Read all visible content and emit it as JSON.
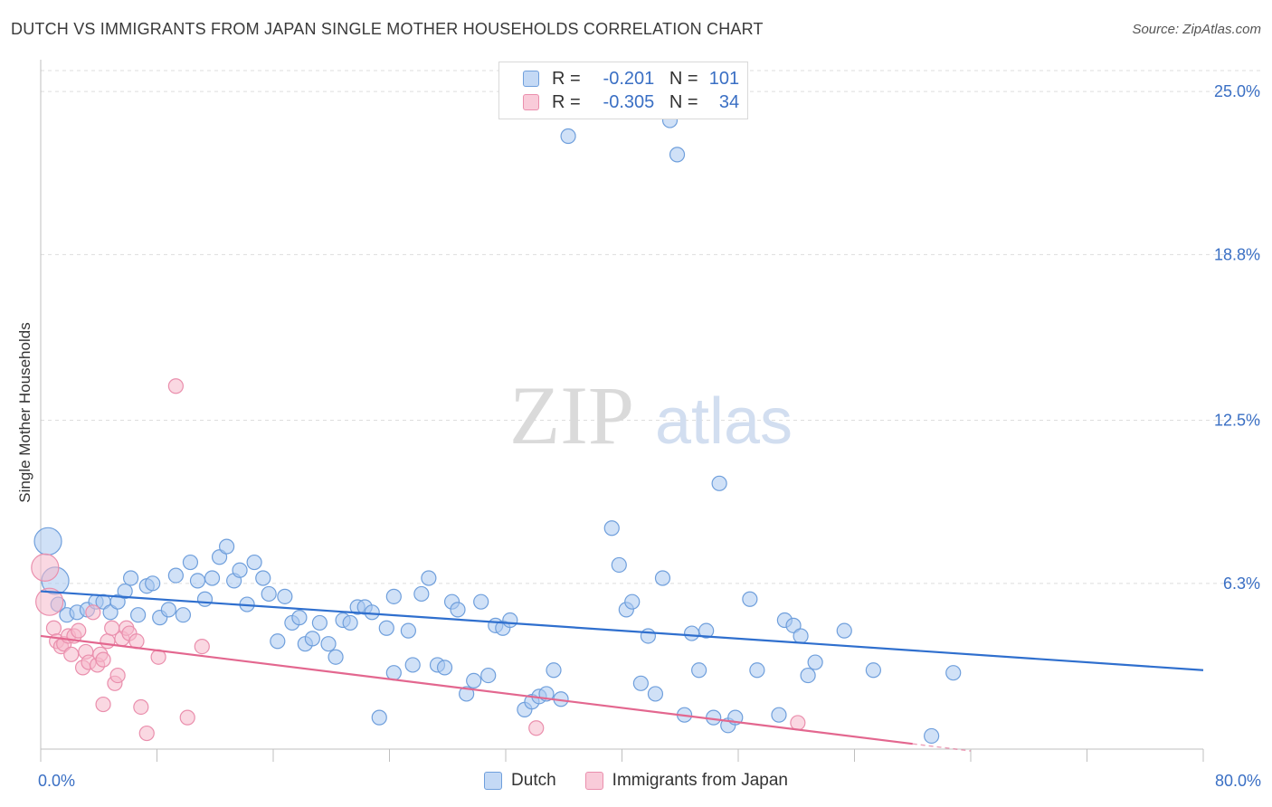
{
  "title": "DUTCH VS IMMIGRANTS FROM JAPAN SINGLE MOTHER HOUSEHOLDS CORRELATION CHART",
  "source": "Source: ZipAtlas.com",
  "watermark": {
    "zip": "ZIP",
    "atlas": "atlas"
  },
  "legend": {
    "row1": {
      "r_label": "R =",
      "r_value": "-0.201",
      "n_label": "N =",
      "n_value": "101"
    },
    "row2": {
      "r_label": "R =",
      "r_value": "-0.305",
      "n_label": "N =",
      "n_value": "34"
    }
  },
  "colors": {
    "dutch_fill": "#a9c8f0",
    "dutch_stroke": "#6f9fdc",
    "dutch_line": "#2f6fce",
    "japan_fill": "#f6b8cb",
    "japan_stroke": "#ea8fad",
    "japan_line": "#e3678f",
    "tick_label": "#3a6fc4",
    "grid": "#dddddd"
  },
  "chart_data": {
    "type": "scatter",
    "xlabel": "",
    "ylabel": "Single Mother Households",
    "x_tick_labels": [
      "0.0%",
      "80.0%"
    ],
    "y_tick_labels": [
      "25.0%",
      "18.8%",
      "12.5%",
      "6.3%"
    ],
    "y_ticks": [
      25.0,
      18.8,
      12.5,
      6.3
    ],
    "xlim": [
      0,
      80
    ],
    "ylim": [
      0,
      26
    ],
    "grid": true,
    "legend_position": "top-center",
    "series": [
      {
        "name": "Dutch",
        "r": -0.201,
        "n": 101,
        "trend": {
          "x0": 0,
          "y0": 6.0,
          "x1": 80,
          "y1": 3.0
        },
        "points": [
          [
            0.5,
            7.9
          ],
          [
            1.0,
            6.4
          ],
          [
            1.2,
            5.5
          ],
          [
            1.8,
            5.1
          ],
          [
            2.5,
            5.2
          ],
          [
            3.2,
            5.3
          ],
          [
            3.8,
            5.6
          ],
          [
            4.3,
            5.6
          ],
          [
            4.8,
            5.2
          ],
          [
            5.3,
            5.6
          ],
          [
            5.8,
            6.0
          ],
          [
            6.2,
            6.5
          ],
          [
            6.7,
            5.1
          ],
          [
            7.3,
            6.2
          ],
          [
            7.7,
            6.3
          ],
          [
            8.2,
            5.0
          ],
          [
            8.8,
            5.3
          ],
          [
            9.3,
            6.6
          ],
          [
            9.8,
            5.1
          ],
          [
            10.3,
            7.1
          ],
          [
            10.8,
            6.4
          ],
          [
            11.3,
            5.7
          ],
          [
            11.8,
            6.5
          ],
          [
            12.3,
            7.3
          ],
          [
            12.8,
            7.7
          ],
          [
            13.3,
            6.4
          ],
          [
            13.7,
            6.8
          ],
          [
            14.2,
            5.5
          ],
          [
            14.7,
            7.1
          ],
          [
            15.3,
            6.5
          ],
          [
            15.7,
            5.9
          ],
          [
            16.3,
            4.1
          ],
          [
            16.8,
            5.8
          ],
          [
            17.3,
            4.8
          ],
          [
            17.8,
            5.0
          ],
          [
            18.2,
            4.0
          ],
          [
            18.7,
            4.2
          ],
          [
            19.2,
            4.8
          ],
          [
            19.8,
            4.0
          ],
          [
            20.3,
            3.5
          ],
          [
            20.8,
            4.9
          ],
          [
            21.3,
            4.8
          ],
          [
            21.8,
            5.4
          ],
          [
            22.3,
            5.4
          ],
          [
            22.8,
            5.2
          ],
          [
            23.3,
            1.2
          ],
          [
            23.8,
            4.6
          ],
          [
            24.3,
            5.8
          ],
          [
            25.3,
            4.5
          ],
          [
            25.6,
            3.2
          ],
          [
            26.2,
            5.9
          ],
          [
            26.7,
            6.5
          ],
          [
            27.3,
            3.2
          ],
          [
            27.8,
            3.1
          ],
          [
            28.3,
            5.6
          ],
          [
            28.7,
            5.3
          ],
          [
            29.3,
            2.1
          ],
          [
            29.8,
            2.6
          ],
          [
            30.3,
            5.6
          ],
          [
            30.8,
            2.8
          ],
          [
            31.3,
            4.7
          ],
          [
            31.8,
            4.6
          ],
          [
            32.3,
            4.9
          ],
          [
            33.3,
            1.5
          ],
          [
            33.8,
            1.8
          ],
          [
            34.3,
            2.0
          ],
          [
            34.8,
            2.1
          ],
          [
            35.3,
            3.0
          ],
          [
            35.8,
            1.9
          ],
          [
            39.3,
            8.4
          ],
          [
            39.8,
            7.0
          ],
          [
            40.3,
            5.3
          ],
          [
            40.7,
            5.6
          ],
          [
            41.3,
            2.5
          ],
          [
            41.8,
            4.3
          ],
          [
            42.3,
            2.1
          ],
          [
            42.8,
            6.5
          ],
          [
            43.3,
            23.9
          ],
          [
            43.8,
            22.6
          ],
          [
            44.3,
            1.3
          ],
          [
            44.8,
            4.4
          ],
          [
            45.3,
            3.0
          ],
          [
            45.8,
            4.5
          ],
          [
            46.3,
            1.2
          ],
          [
            46.7,
            10.1
          ],
          [
            47.3,
            0.9
          ],
          [
            47.8,
            1.2
          ],
          [
            48.8,
            5.7
          ],
          [
            49.3,
            3.0
          ],
          [
            50.8,
            1.3
          ],
          [
            51.2,
            4.9
          ],
          [
            51.8,
            4.7
          ],
          [
            52.3,
            4.3
          ],
          [
            52.8,
            2.8
          ],
          [
            53.3,
            3.3
          ],
          [
            55.3,
            4.5
          ],
          [
            57.3,
            3.0
          ],
          [
            61.3,
            0.5
          ],
          [
            62.8,
            2.9
          ],
          [
            24.3,
            2.9
          ],
          [
            36.3,
            23.3
          ]
        ]
      },
      {
        "name": "Immigrants from Japan",
        "r": -0.305,
        "n": 34,
        "trend": {
          "x0": 0,
          "y0": 4.3,
          "x1": 60,
          "y1": 0.2
        },
        "points": [
          [
            0.3,
            6.9
          ],
          [
            0.6,
            5.6
          ],
          [
            0.9,
            4.6
          ],
          [
            1.1,
            4.1
          ],
          [
            1.4,
            3.9
          ],
          [
            1.6,
            4.0
          ],
          [
            1.9,
            4.3
          ],
          [
            2.1,
            3.6
          ],
          [
            2.3,
            4.3
          ],
          [
            2.6,
            4.5
          ],
          [
            2.9,
            3.1
          ],
          [
            3.1,
            3.7
          ],
          [
            3.3,
            3.3
          ],
          [
            3.6,
            5.2
          ],
          [
            3.9,
            3.2
          ],
          [
            4.1,
            3.6
          ],
          [
            4.3,
            3.4
          ],
          [
            4.6,
            4.1
          ],
          [
            4.9,
            4.6
          ],
          [
            5.1,
            2.5
          ],
          [
            5.3,
            2.8
          ],
          [
            5.6,
            4.2
          ],
          [
            5.9,
            4.6
          ],
          [
            6.1,
            4.4
          ],
          [
            6.6,
            4.1
          ],
          [
            6.9,
            1.6
          ],
          [
            7.3,
            0.6
          ],
          [
            8.1,
            3.5
          ],
          [
            9.3,
            13.8
          ],
          [
            10.1,
            1.2
          ],
          [
            11.1,
            3.9
          ],
          [
            4.3,
            1.7
          ],
          [
            34.1,
            0.8
          ],
          [
            52.1,
            1.0
          ]
        ]
      }
    ]
  },
  "bottom_legend": {
    "series1": "Dutch",
    "series2": "Immigrants from Japan"
  }
}
